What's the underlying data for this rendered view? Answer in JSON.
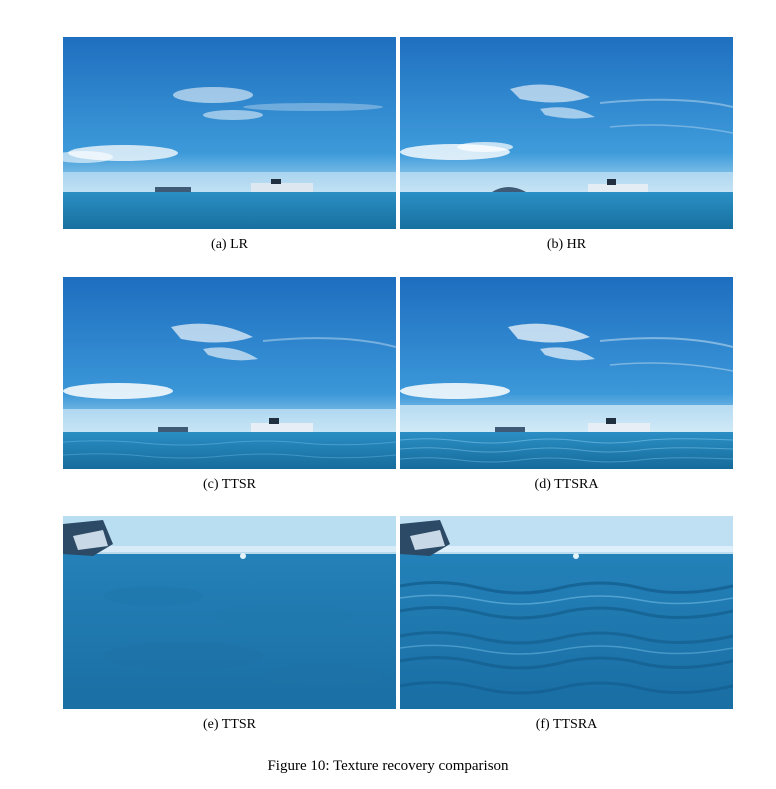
{
  "figure": {
    "caption": "Figure 10: Texture recovery comparison",
    "panels": [
      {
        "label": "(a) LR"
      },
      {
        "label": "(b) HR"
      },
      {
        "label": "(c) TTSR"
      },
      {
        "label": "(d) TTSRA"
      },
      {
        "label": "(e) TTSR"
      },
      {
        "label": "(f) TTSRA"
      }
    ]
  },
  "colors": {
    "sky_top": "#1f74c4",
    "sky_mid": "#3a95d9",
    "horizon": "#9fd0ee",
    "sea": "#1d7db4",
    "sea_dark": "#15649a",
    "cloud": "#ffffff",
    "ship": "#e8eef5",
    "island": "#3e5a74"
  }
}
